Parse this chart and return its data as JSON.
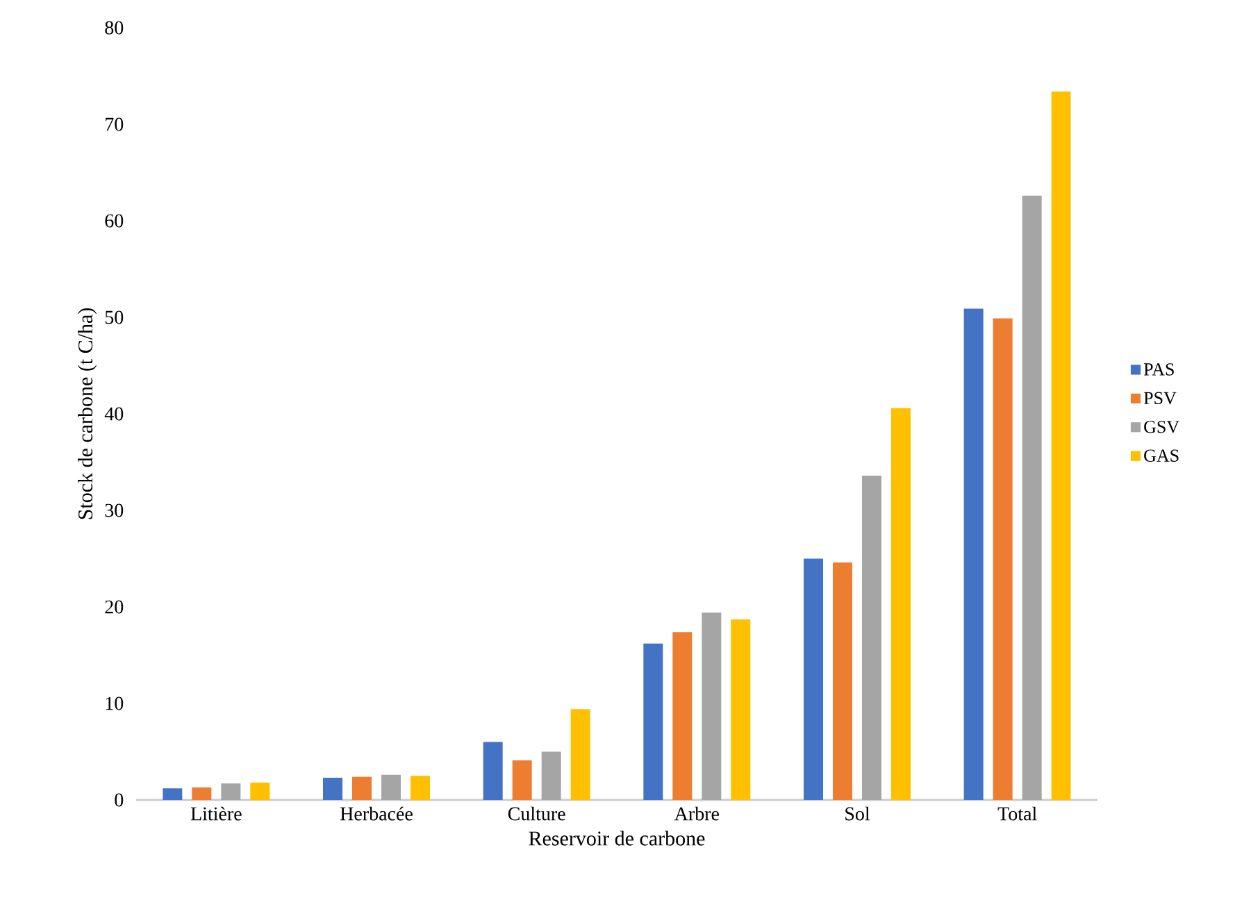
{
  "chart_data": {
    "type": "bar",
    "xlabel": "Reservoir de carbone",
    "ylabel": "Stock de carbone (t C/ha)",
    "categories": [
      "Litière",
      "Herbacée",
      "Culture",
      "Arbre",
      "Sol",
      "Total"
    ],
    "series": [
      {
        "name": "PAS",
        "color": "#4472c4",
        "values": [
          1.2,
          2.3,
          6.0,
          16.2,
          25.0,
          50.9
        ]
      },
      {
        "name": "PSV",
        "color": "#ed7d31",
        "values": [
          1.3,
          2.4,
          4.1,
          17.4,
          24.6,
          49.9
        ]
      },
      {
        "name": "GSV",
        "color": "#a5a5a5",
        "values": [
          1.7,
          2.6,
          5.0,
          19.4,
          33.6,
          62.6
        ]
      },
      {
        "name": "GAS",
        "color": "#ffc000",
        "values": [
          1.8,
          2.5,
          9.4,
          18.7,
          40.6,
          73.4
        ]
      }
    ],
    "ylim": [
      0,
      80
    ],
    "yticks": [
      0,
      10,
      20,
      30,
      40,
      50,
      60,
      70,
      80
    ],
    "legend": "right"
  }
}
